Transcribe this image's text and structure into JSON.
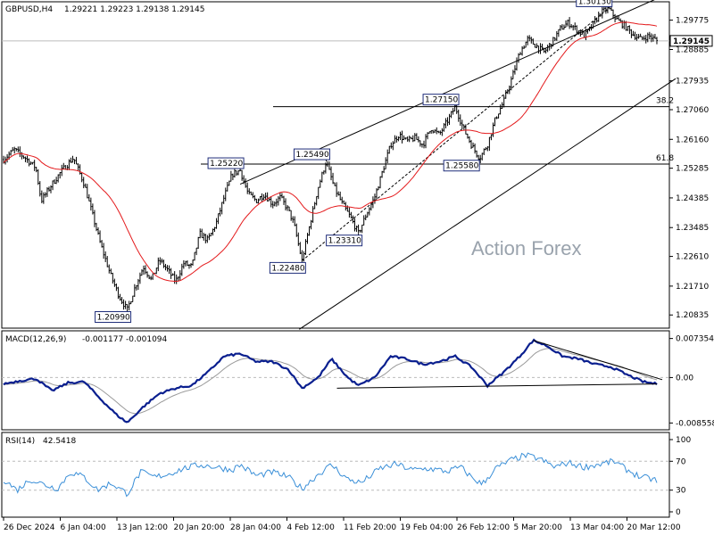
{
  "header": {
    "symbol": "GBPUSD,H4",
    "ohlc": "1.29221 1.29223 1.29138 1.29145"
  },
  "watermark": "Action Forex",
  "colors": {
    "price_bars": "#000000",
    "ma_line": "#e41a1c",
    "macd_line": "#0a1f8f",
    "signal_line": "#9a9a9a",
    "rsi_line": "#3a8fd8",
    "grid": "#bcbcbc",
    "price_marker_bg": "#ffffff",
    "label_border": "#1f2d7a"
  },
  "chart_data": [
    {
      "type": "candlestick",
      "name": "price",
      "ylim": [
        1.2049,
        1.3025
      ],
      "y_ticks": [
        "1.29775",
        "1.28885",
        "1.27935",
        "1.27060",
        "1.26160",
        "1.25285",
        "1.24385",
        "1.23485",
        "1.22610",
        "1.21710",
        "1.20835"
      ],
      "y_tick_values": [
        1.29775,
        1.28885,
        1.27935,
        1.2706,
        1.2616,
        1.25285,
        1.24385,
        1.23485,
        1.2261,
        1.2171,
        1.20835
      ],
      "last_price_label": "1.29145",
      "last_price": 1.29145,
      "x_tick_labels": [
        "26 Dec 2024",
        "6 Jan 04:00",
        "13 Jan 12:00",
        "20 Jan 20:00",
        "28 Jan 04:00",
        "4 Feb 12:00",
        "11 Feb 20:00",
        "19 Feb 04:00",
        "26 Feb 12:00",
        "5 Mar 20:00",
        "13 Mar 04:00",
        "20 Mar 12:00"
      ],
      "bar_count": 360,
      "close_path": [
        [
          0,
          1.2555
        ],
        [
          8,
          1.2585
        ],
        [
          16,
          1.256
        ],
        [
          24,
          1.253
        ],
        [
          28,
          1.243
        ],
        [
          36,
          1.248
        ],
        [
          44,
          1.2525
        ],
        [
          52,
          1.256
        ],
        [
          60,
          1.248
        ],
        [
          66,
          1.239
        ],
        [
          72,
          1.23
        ],
        [
          80,
          1.22
        ],
        [
          86,
          1.214
        ],
        [
          92,
          1.2099
        ],
        [
          98,
          1.217
        ],
        [
          104,
          1.223
        ],
        [
          110,
          1.219
        ],
        [
          116,
          1.225
        ],
        [
          122,
          1.222
        ],
        [
          128,
          1.2185
        ],
        [
          134,
          1.224
        ],
        [
          140,
          1.223
        ],
        [
          146,
          1.233
        ],
        [
          152,
          1.231
        ],
        [
          158,
          1.236
        ],
        [
          164,
          1.244
        ],
        [
          170,
          1.251
        ],
        [
          176,
          1.2522
        ],
        [
          182,
          1.245
        ],
        [
          188,
          1.243
        ],
        [
          194,
          1.245
        ],
        [
          200,
          1.242
        ],
        [
          206,
          1.244
        ],
        [
          212,
          1.24
        ],
        [
          216,
          1.236
        ],
        [
          222,
          1.2248
        ],
        [
          228,
          1.236
        ],
        [
          234,
          1.247
        ],
        [
          240,
          1.2549
        ],
        [
          246,
          1.247
        ],
        [
          252,
          1.242
        ],
        [
          258,
          1.238
        ],
        [
          264,
          1.2331
        ],
        [
          270,
          1.239
        ],
        [
          276,
          1.244
        ],
        [
          282,
          1.252
        ],
        [
          288,
          1.26
        ],
        [
          294,
          1.263
        ],
        [
          300,
          1.261
        ],
        [
          306,
          1.262
        ],
        [
          312,
          1.26
        ],
        [
          318,
          1.265
        ],
        [
          324,
          1.263
        ],
        [
          330,
          1.267
        ],
        [
          336,
          1.2715
        ],
        [
          342,
          1.265
        ],
        [
          348,
          1.26
        ],
        [
          354,
          1.2558
        ],
        [
          360,
          1.26
        ],
        [
          366,
          1.268
        ],
        [
          372,
          1.273
        ],
        [
          378,
          1.28
        ],
        [
          384,
          1.288
        ],
        [
          390,
          1.292
        ],
        [
          396,
          1.29
        ],
        [
          402,
          1.288
        ],
        [
          408,
          1.291
        ],
        [
          414,
          1.295
        ],
        [
          420,
          1.297
        ],
        [
          426,
          1.295
        ],
        [
          432,
          1.293
        ],
        [
          438,
          1.296
        ],
        [
          444,
          1.3
        ],
        [
          450,
          1.3013
        ],
        [
          456,
          1.298
        ],
        [
          462,
          1.296
        ],
        [
          468,
          1.2935
        ],
        [
          474,
          1.292
        ],
        [
          480,
          1.293
        ],
        [
          486,
          1.2915
        ]
      ],
      "swing_labels": [
        {
          "text": "1.20990",
          "value": 1.2099,
          "idx": 92
        },
        {
          "text": "1.25220",
          "value": 1.2522,
          "idx": 176
        },
        {
          "text": "1.22480",
          "value": 1.2248,
          "idx": 222
        },
        {
          "text": "1.25490",
          "value": 1.2549,
          "idx": 240
        },
        {
          "text": "1.23310",
          "value": 1.2331,
          "idx": 264
        },
        {
          "text": "1.27150",
          "value": 1.2715,
          "idx": 336
        },
        {
          "text": "1.25580",
          "value": 1.2558,
          "idx": 354
        },
        {
          "text": "1.30130",
          "value": 1.3013,
          "idx": 450
        }
      ],
      "fib_levels": [
        {
          "label": "38.2",
          "value": 1.2715
        },
        {
          "label": "61.8",
          "value": 1.2541
        }
      ],
      "channel": {
        "upper_a": [
          176,
          1.248
        ],
        "upper_b": [
          490,
          1.305
        ],
        "lower_a": [
          220,
          1.204
        ],
        "lower_b": [
          500,
          1.28
        ]
      },
      "dashed_trend": {
        "a": [
          222,
          1.2248
        ],
        "b": [
          450,
          1.3013
        ]
      }
    },
    {
      "type": "line",
      "name": "MACD(12,26,9)",
      "header_values": "-0.001177 -0.001094",
      "ylim": [
        -0.0095,
        0.0083
      ],
      "y_ticks": [
        "0.007354",
        "0.00",
        "-0.008558"
      ],
      "y_tick_values": [
        0.007354,
        0.0,
        -0.008558
      ],
      "macd_path": [
        [
          0,
          -0.0012
        ],
        [
          12,
          -0.0006
        ],
        [
          24,
          -0.0002
        ],
        [
          36,
          -0.0025
        ],
        [
          48,
          -0.001
        ],
        [
          60,
          -0.0008
        ],
        [
          72,
          -0.004
        ],
        [
          84,
          -0.007
        ],
        [
          92,
          -0.0085
        ],
        [
          104,
          -0.0055
        ],
        [
          116,
          -0.003
        ],
        [
          128,
          -0.002
        ],
        [
          140,
          -0.0015
        ],
        [
          152,
          0.001
        ],
        [
          164,
          0.004
        ],
        [
          176,
          0.0045
        ],
        [
          188,
          0.003
        ],
        [
          200,
          0.003
        ],
        [
          212,
          0.0015
        ],
        [
          222,
          -0.002
        ],
        [
          234,
          0.0
        ],
        [
          244,
          0.0035
        ],
        [
          256,
          0.0
        ],
        [
          264,
          -0.0015
        ],
        [
          276,
          0.0
        ],
        [
          288,
          0.004
        ],
        [
          300,
          0.0035
        ],
        [
          312,
          0.0025
        ],
        [
          324,
          0.003
        ],
        [
          336,
          0.004
        ],
        [
          348,
          0.002
        ],
        [
          360,
          -0.0015
        ],
        [
          372,
          0.001
        ],
        [
          384,
          0.004
        ],
        [
          394,
          0.007
        ],
        [
          404,
          0.006
        ],
        [
          416,
          0.004
        ],
        [
          428,
          0.0035
        ],
        [
          440,
          0.0025
        ],
        [
          452,
          0.002
        ],
        [
          464,
          0.0005
        ],
        [
          476,
          -0.0008
        ],
        [
          486,
          -0.0012
        ]
      ],
      "trendlines": [
        {
          "a": [
            248,
            -0.002
          ],
          "b": [
            486,
            -0.0012
          ]
        },
        {
          "a": [
            394,
            0.007
          ],
          "b": [
            490,
            -0.0004
          ]
        }
      ]
    },
    {
      "type": "line",
      "name": "RSI(14)",
      "header_values": "42.5418",
      "ylim": [
        0,
        100
      ],
      "y_ticks": [
        "100",
        "70",
        "30",
        "0"
      ],
      "y_tick_values": [
        100,
        70,
        30,
        0
      ],
      "rsi_path": [
        [
          0,
          45
        ],
        [
          10,
          30
        ],
        [
          20,
          45
        ],
        [
          30,
          38
        ],
        [
          40,
          32
        ],
        [
          50,
          55
        ],
        [
          60,
          48
        ],
        [
          70,
          30
        ],
        [
          80,
          40
        ],
        [
          92,
          25
        ],
        [
          102,
          55
        ],
        [
          112,
          48
        ],
        [
          122,
          52
        ],
        [
          134,
          60
        ],
        [
          146,
          65
        ],
        [
          158,
          62
        ],
        [
          170,
          58
        ],
        [
          176,
          65
        ],
        [
          188,
          50
        ],
        [
          200,
          55
        ],
        [
          212,
          48
        ],
        [
          222,
          32
        ],
        [
          234,
          52
        ],
        [
          244,
          65
        ],
        [
          256,
          45
        ],
        [
          266,
          40
        ],
        [
          280,
          60
        ],
        [
          292,
          66
        ],
        [
          304,
          58
        ],
        [
          316,
          60
        ],
        [
          330,
          56
        ],
        [
          340,
          62
        ],
        [
          348,
          48
        ],
        [
          356,
          38
        ],
        [
          366,
          60
        ],
        [
          378,
          72
        ],
        [
          388,
          78
        ],
        [
          398,
          74
        ],
        [
          410,
          62
        ],
        [
          420,
          68
        ],
        [
          432,
          62
        ],
        [
          444,
          66
        ],
        [
          454,
          70
        ],
        [
          464,
          58
        ],
        [
          474,
          48
        ],
        [
          484,
          45
        ],
        [
          486,
          42
        ]
      ]
    }
  ]
}
